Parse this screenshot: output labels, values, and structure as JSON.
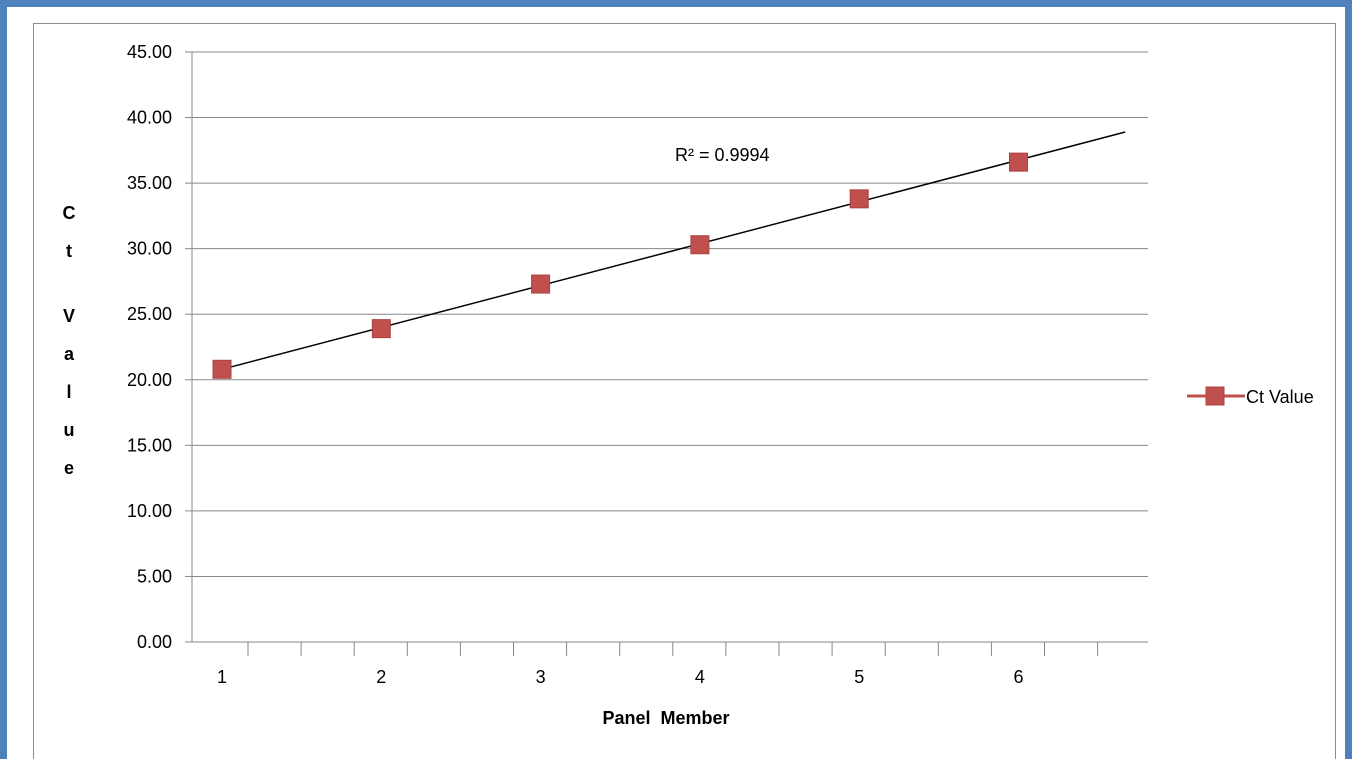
{
  "chart_data": {
    "type": "scatter",
    "title": "",
    "xlabel": "Panel  Member",
    "ylabel": "Ct Value",
    "ylim": [
      0,
      45
    ],
    "y_tick_step": 5,
    "y_tick_labels": [
      "0.00",
      "5.00",
      "10.00",
      "15.00",
      "20.00",
      "25.00",
      "30.00",
      "35.00",
      "40.00",
      "45.00"
    ],
    "x": [
      1,
      2,
      3,
      4,
      5,
      6
    ],
    "x_tick_labels": [
      "1",
      "2",
      "3",
      "4",
      "5",
      "6"
    ],
    "grid": true,
    "legend_position": "right",
    "series": [
      {
        "name": "Ct Value",
        "values": [
          20.8,
          23.9,
          27.3,
          30.3,
          33.8,
          36.6
        ],
        "color": "#c0504d",
        "marker": "square"
      }
    ],
    "trendline": {
      "type": "linear",
      "x_start": 1,
      "x_end": 6.67,
      "y_start": 20.8,
      "y_end": 38.9,
      "r_squared_label": "R² = 0.9994"
    }
  }
}
